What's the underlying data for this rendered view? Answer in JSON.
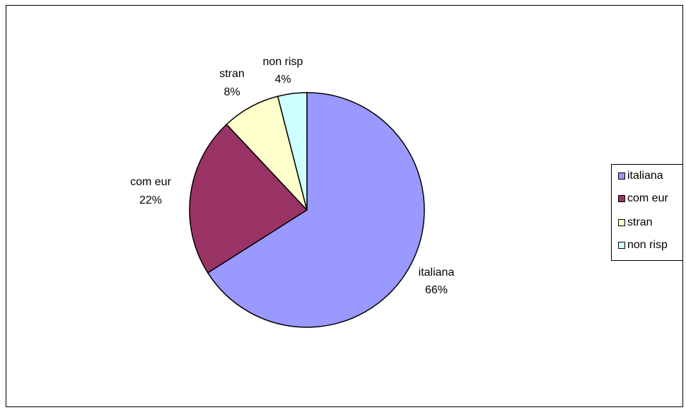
{
  "chart_data": {
    "type": "pie",
    "title": "",
    "slices": [
      {
        "name": "italiana",
        "value": 66,
        "label": "66%",
        "color": "#9999FF"
      },
      {
        "name": "com eur",
        "value": 22,
        "label": "22%",
        "color": "#993366"
      },
      {
        "name": "stran",
        "value": 8,
        "label": "8%",
        "color": "#FFFFCC"
      },
      {
        "name": "non risp",
        "value": 4,
        "label": "4%",
        "color": "#CCFFFF"
      }
    ],
    "legend": {
      "placement": "right",
      "entries": [
        "italiana",
        "com eur",
        "stran",
        "non risp"
      ]
    },
    "start_angle": "12 o'clock",
    "direction": "clockwise"
  }
}
